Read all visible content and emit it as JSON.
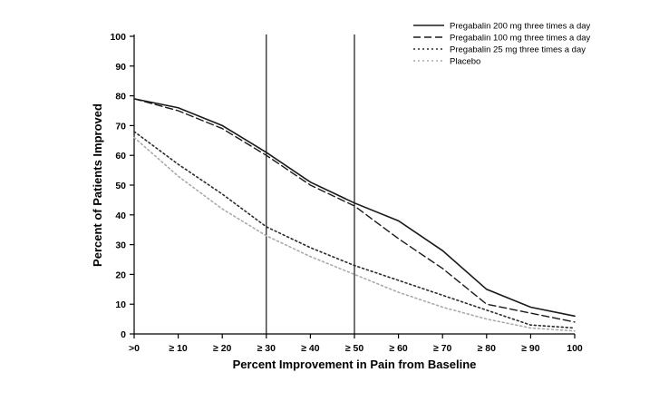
{
  "chart_data": {
    "type": "line",
    "title": "",
    "xlabel": "Percent Improvement in Pain from Baseline",
    "ylabel": "Percent of Patients Improved",
    "x_tick_labels": [
      ">0",
      "≥ 10",
      "≥ 20",
      "≥ 30",
      "≥ 40",
      "≥ 50",
      "≥ 60",
      "≥ 70",
      "≥ 80",
      "≥ 90",
      "100"
    ],
    "y_ticks": [
      0,
      10,
      20,
      30,
      40,
      50,
      60,
      70,
      80,
      90,
      100
    ],
    "ylim": [
      0,
      100
    ],
    "grid": false,
    "legend_position": "top-right",
    "reference_line_labels": [
      "≥ 30",
      "≥ 50"
    ],
    "reference_line_indices": [
      3,
      5
    ],
    "axis_color": "#000000",
    "series": [
      {
        "name": "Pregabalin 200 mg three times a day",
        "color": "#1a1a1a",
        "dash": "",
        "width": 1.6,
        "values": [
          79,
          76,
          70,
          61,
          51,
          44,
          38,
          28,
          15,
          9,
          6
        ]
      },
      {
        "name": "Pregabalin 100 mg three times a day",
        "color": "#1a1a1a",
        "dash": "8,4",
        "width": 1.4,
        "values": [
          79,
          75,
          69,
          60,
          50,
          43,
          32,
          22,
          10,
          7,
          4
        ]
      },
      {
        "name": "Pregabalin 25 mg three times a day",
        "color": "#2b2b2b",
        "dash": "2,3",
        "width": 1.6,
        "values": [
          68,
          57,
          47,
          36,
          29,
          23,
          18,
          13,
          8,
          3,
          2
        ]
      },
      {
        "name": "Placebo",
        "color": "#aaaaaa",
        "dash": "2,3",
        "width": 1.6,
        "values": [
          66,
          53,
          42,
          33,
          26,
          20,
          14,
          9,
          5,
          2,
          1
        ]
      }
    ]
  }
}
